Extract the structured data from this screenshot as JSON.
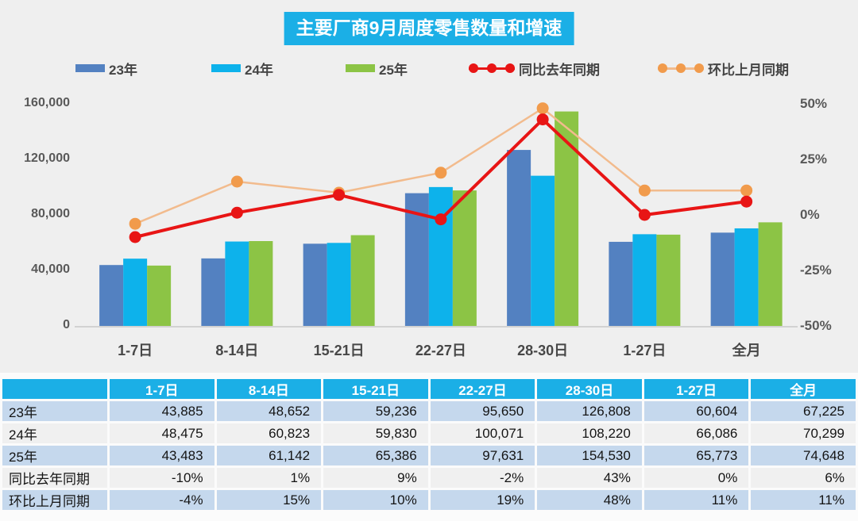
{
  "chart_data": {
    "type": "bar+line",
    "title": "主要厂商9月周度零售数量和增速",
    "categories": [
      "1-7日",
      "8-14日",
      "15-21日",
      "22-27日",
      "28-30日",
      "1-27日",
      "全月"
    ],
    "bar_series": [
      {
        "name": "23年",
        "color": "#5381C1",
        "values": [
          43885,
          48652,
          59236,
          95650,
          126808,
          60604,
          67225
        ]
      },
      {
        "name": "24年",
        "color": "#0DB2EB",
        "values": [
          48475,
          60823,
          59830,
          100071,
          108220,
          66086,
          70299
        ]
      },
      {
        "name": "25年",
        "color": "#8CC445",
        "values": [
          43483,
          61142,
          65386,
          97631,
          154530,
          65773,
          74648
        ]
      }
    ],
    "line_series": [
      {
        "name": "同比去年同期",
        "color": "#E81515",
        "marker_color": "#E81515",
        "width": 4,
        "values": [
          -10,
          1,
          9,
          -2,
          43,
          0,
          6
        ]
      },
      {
        "name": "环比上月同期",
        "color": "#F2BB8D",
        "marker_color": "#F19B4C",
        "width": 2.5,
        "values": [
          -4,
          15,
          10,
          19,
          48,
          11,
          11
        ]
      }
    ],
    "y_left": {
      "min": 0,
      "max": 160000,
      "ticks": [
        "160,000",
        "120,000",
        "80,000",
        "40,000",
        "0"
      ]
    },
    "y_right": {
      "min": -50,
      "max": 50,
      "ticks": [
        "50%",
        "25%",
        "0%",
        "-25%",
        "-50%"
      ]
    },
    "legend_position": "top",
    "grid": false
  },
  "table": {
    "columns": [
      "",
      "1-7日",
      "8-14日",
      "15-21日",
      "22-27日",
      "28-30日",
      "1-27日",
      "全月"
    ],
    "rows": [
      {
        "label": "23年",
        "values": [
          "43,885",
          "48,652",
          "59,236",
          "95,650",
          "126,808",
          "60,604",
          "67,225"
        ]
      },
      {
        "label": "24年",
        "values": [
          "48,475",
          "60,823",
          "59,830",
          "100,071",
          "108,220",
          "66,086",
          "70,299"
        ]
      },
      {
        "label": "25年",
        "values": [
          "43,483",
          "61,142",
          "65,386",
          "97,631",
          "154,530",
          "65,773",
          "74,648"
        ]
      },
      {
        "label": "同比去年同期",
        "values": [
          "-10%",
          "1%",
          "9%",
          "-2%",
          "43%",
          "0%",
          "6%"
        ]
      },
      {
        "label": "环比上月同期",
        "values": [
          "-4%",
          "15%",
          "10%",
          "19%",
          "48%",
          "11%",
          "11%"
        ]
      }
    ]
  }
}
